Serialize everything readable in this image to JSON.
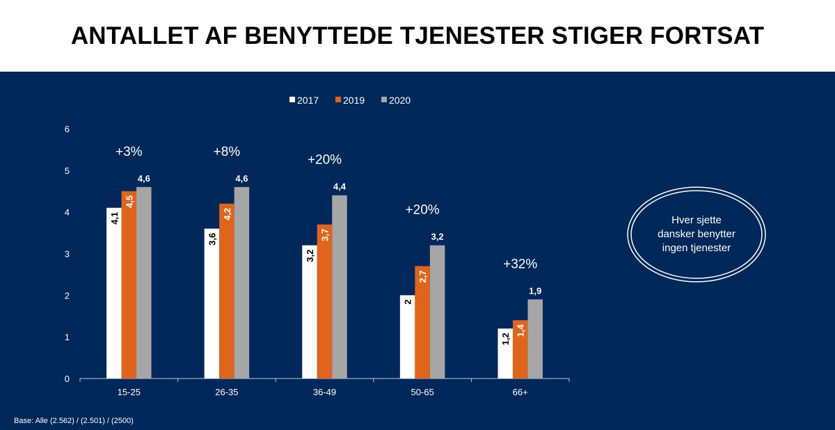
{
  "title": "ANTALLET AF BENYTTEDE TJENESTER STIGER FORTSAT",
  "base_note": "Base: Alle (2.562) / (2.501) / (2500)",
  "callout": {
    "line1": "Hver sjette",
    "line2": "dansker benytter",
    "line3": "ingen tjenester"
  },
  "colors": {
    "background": "#00285a",
    "2017": "#ffffff",
    "2019": "#e0651c",
    "2020": "#a6a6a6"
  },
  "chart_data": {
    "type": "bar",
    "categories": [
      "15-25",
      "26-35",
      "36-49",
      "50-65",
      "66+"
    ],
    "series": [
      {
        "name": "2017",
        "values": [
          4.1,
          3.6,
          3.2,
          2.0,
          1.2
        ],
        "labels": [
          "4,1",
          "3,6",
          "3,2",
          "2",
          "1,2"
        ]
      },
      {
        "name": "2019",
        "values": [
          4.5,
          4.2,
          3.7,
          2.7,
          1.4
        ],
        "labels": [
          "4,5",
          "4,2",
          "3,7",
          "2,7",
          "1,4"
        ]
      },
      {
        "name": "2020",
        "values": [
          4.6,
          4.6,
          4.4,
          3.2,
          1.9
        ],
        "labels": [
          "4,6",
          "4,6",
          "4,4",
          "3,2",
          "1,9"
        ]
      }
    ],
    "annotations": [
      "+3%",
      "+8%",
      "+20%",
      "+20%",
      "+32%"
    ],
    "ylim": [
      0,
      6
    ],
    "yticks": [
      "0",
      "1",
      "2",
      "3",
      "4",
      "5",
      "6"
    ],
    "legend": "top-center",
    "grid": false
  }
}
